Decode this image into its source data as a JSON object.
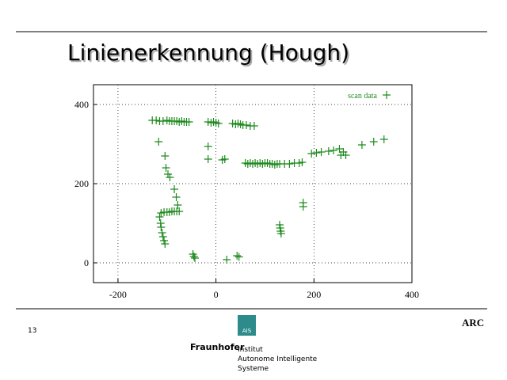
{
  "slide": {
    "title": "Linienerkennung (Hough)",
    "page_number": "13",
    "brand": "ARC",
    "logo_text": "AIS",
    "org": "Fraunhofer",
    "institute": [
      "Institut",
      "Autonome Intelligente",
      "Systeme"
    ]
  },
  "chart_data": {
    "type": "scatter",
    "legend": "top-right",
    "grid": true,
    "xlim": [
      -250,
      400
    ],
    "ylim": [
      -50,
      450
    ],
    "xticks": [
      -200,
      0,
      200,
      400
    ],
    "yticks": [
      0,
      200,
      400
    ],
    "x": [
      -130,
      -122,
      -115,
      -108,
      -100,
      -95,
      -90,
      -85,
      -80,
      -75,
      -70,
      -65,
      -60,
      -55,
      -16,
      -10,
      -5,
      0,
      5,
      34,
      40,
      45,
      50,
      55,
      62,
      70,
      78,
      60,
      65,
      70,
      75,
      80,
      85,
      90,
      95,
      100,
      105,
      110,
      115,
      120,
      125,
      130,
      140,
      150,
      160,
      170,
      176,
      195,
      205,
      215,
      230,
      240,
      252,
      255,
      260,
      265,
      298,
      322,
      343,
      -117,
      -104,
      -102,
      -98,
      -94,
      -85,
      -81,
      -78,
      -112,
      -106,
      -100,
      -95,
      -90,
      -85,
      -80,
      -75,
      -115,
      -113,
      -112,
      -110,
      -108,
      -106,
      -104,
      -47,
      -45,
      -43,
      22,
      43,
      47,
      130,
      131,
      132,
      133,
      178,
      178,
      -16,
      -16,
      13,
      18
    ],
    "series": [
      {
        "name": "scan data",
        "color": "#1f8a1f",
        "values": [
          360,
          360,
          358,
          358,
          360,
          358,
          358,
          358,
          358,
          356,
          358,
          356,
          356,
          356,
          356,
          354,
          356,
          354,
          352,
          352,
          350,
          352,
          350,
          348,
          348,
          346,
          346,
          252,
          250,
          252,
          250,
          252,
          250,
          252,
          250,
          252,
          252,
          250,
          250,
          248,
          250,
          250,
          250,
          250,
          252,
          252,
          254,
          276,
          278,
          280,
          282,
          284,
          288,
          272,
          280,
          272,
          298,
          306,
          312,
          306,
          270,
          240,
          224,
          216,
          186,
          166,
          146,
          126,
          128,
          128,
          128,
          130,
          130,
          130,
          130,
          116,
          100,
          90,
          76,
          66,
          56,
          48,
          22,
          16,
          12,
          8,
          18,
          15,
          96,
          88,
          80,
          74,
          152,
          142,
          294,
          262,
          260,
          262
        ]
      }
    ]
  }
}
